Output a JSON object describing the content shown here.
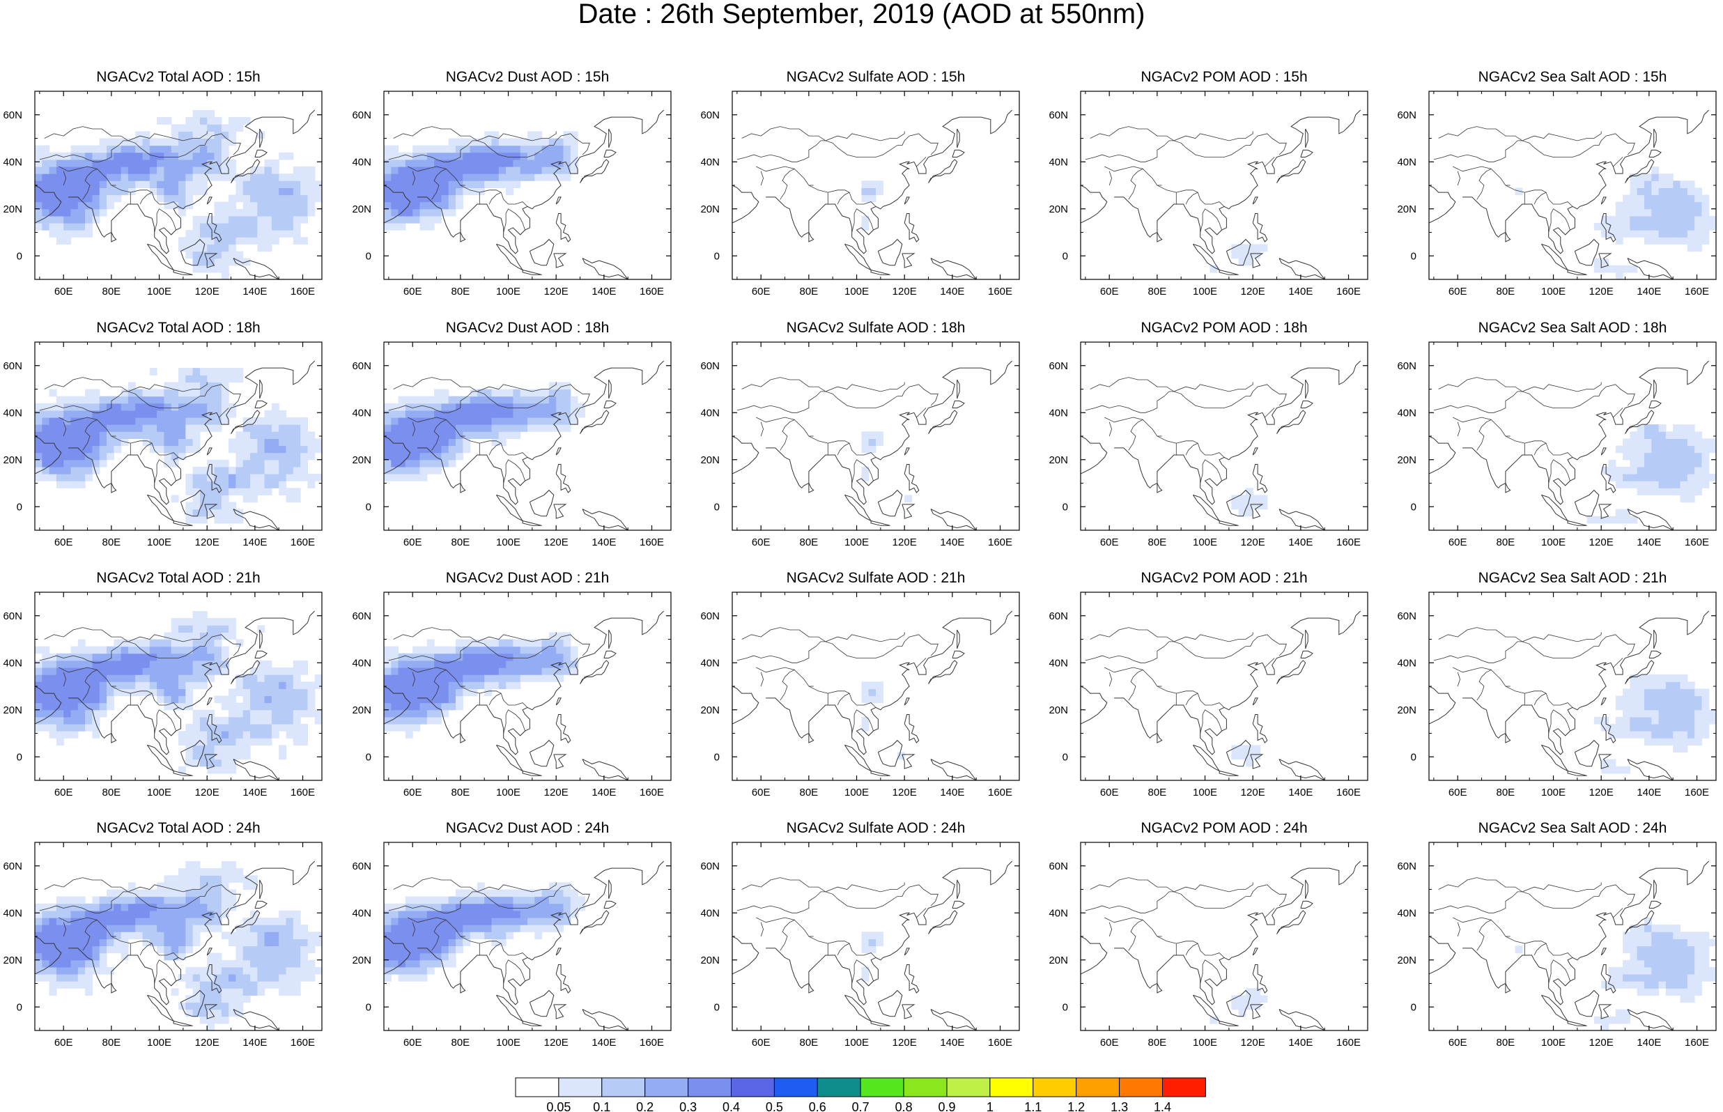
{
  "title": "Date : 26th September, 2019 (AOD at 550nm)",
  "chart_data": {
    "type": "heatmap",
    "title": "Date : 26th September, 2019 (AOD at 550nm)",
    "rows": [
      "15h",
      "18h",
      "21h",
      "24h"
    ],
    "columns": [
      "Total AOD",
      "Dust AOD",
      "Sulfate AOD",
      "POM AOD",
      "Sea Salt AOD"
    ],
    "panels": [
      [
        "NGACv2 Total AOD : 15h",
        "NGACv2 Dust AOD : 15h",
        "NGACv2 Sulfate AOD : 15h",
        "NGACv2 POM AOD : 15h",
        "NGACv2 Sea Salt AOD : 15h"
      ],
      [
        "NGACv2 Total AOD : 18h",
        "NGACv2 Dust AOD : 18h",
        "NGACv2 Sulfate AOD : 18h",
        "NGACv2 POM AOD : 18h",
        "NGACv2 Sea Salt AOD : 18h"
      ],
      [
        "NGACv2 Total AOD : 21h",
        "NGACv2 Dust AOD : 21h",
        "NGACv2 Sulfate AOD : 21h",
        "NGACv2 POM AOD : 21h",
        "NGACv2 Sea Salt AOD : 21h"
      ],
      [
        "NGACv2 Total AOD : 24h",
        "NGACv2 Dust AOD : 24h",
        "NGACv2 Sulfate AOD : 24h",
        "NGACv2 POM AOD : 24h",
        "NGACv2 Sea Salt  AOD : 24h"
      ]
    ],
    "x_ticks": [
      "60E",
      "80E",
      "100E",
      "120E",
      "140E",
      "160E"
    ],
    "y_ticks": [
      "60N",
      "40N",
      "20N",
      "0"
    ],
    "lon_range": [
      48,
      168
    ],
    "lat_range": [
      -10,
      70
    ],
    "colorbar": {
      "labels": [
        "0.05",
        "0.1",
        "0.2",
        "0.3",
        "0.4",
        "0.5",
        "0.6",
        "0.7",
        "0.8",
        "0.9",
        "1",
        "1.1",
        "1.2",
        "1.3",
        "1.4"
      ],
      "colors": [
        "#ffffff",
        "#dbe5fb",
        "#b7cbf7",
        "#93acf3",
        "#7b8fee",
        "#5b66e6",
        "#1e5cf2",
        "#0f8c8c",
        "#55e61e",
        "#8ce61e",
        "#bef046",
        "#ffff00",
        "#ffcd00",
        "#ffa000",
        "#ff7800",
        "#ff1e00"
      ]
    }
  }
}
